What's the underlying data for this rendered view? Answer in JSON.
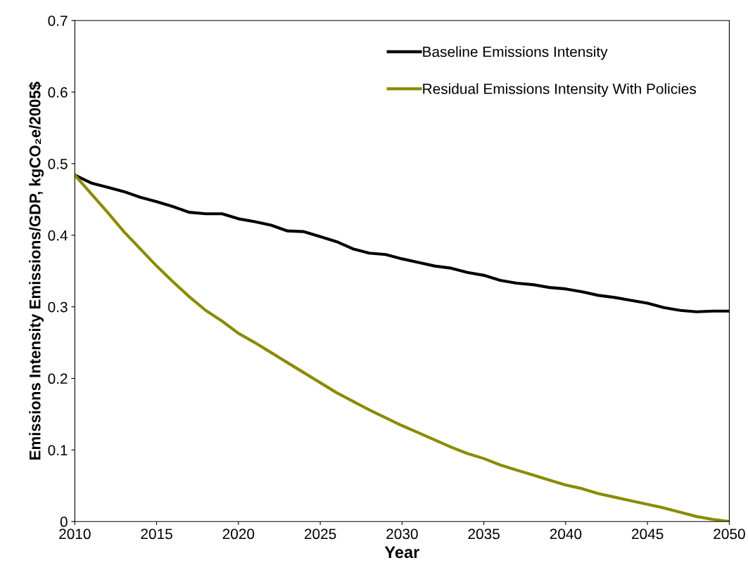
{
  "chart_data": {
    "type": "line",
    "xlabel": "Year",
    "ylabel": "Emissions Intensity Emissions/GDP, kgCO₂e/2005$",
    "x": [
      2010,
      2011,
      2012,
      2013,
      2014,
      2015,
      2016,
      2017,
      2018,
      2019,
      2020,
      2021,
      2022,
      2023,
      2024,
      2025,
      2026,
      2027,
      2028,
      2029,
      2030,
      2031,
      2032,
      2033,
      2034,
      2035,
      2036,
      2037,
      2038,
      2039,
      2040,
      2041,
      2042,
      2043,
      2044,
      2045,
      2046,
      2047,
      2048,
      2049,
      2050
    ],
    "series": [
      {
        "name": "Baseline Emissions Intensity",
        "color": "#000000",
        "values": [
          0.484,
          0.473,
          0.467,
          0.461,
          0.453,
          0.447,
          0.44,
          0.432,
          0.43,
          0.43,
          0.423,
          0.419,
          0.414,
          0.406,
          0.405,
          0.398,
          0.391,
          0.381,
          0.375,
          0.373,
          0.367,
          0.362,
          0.357,
          0.354,
          0.348,
          0.344,
          0.337,
          0.333,
          0.331,
          0.327,
          0.325,
          0.321,
          0.316,
          0.313,
          0.309,
          0.305,
          0.299,
          0.295,
          0.293,
          0.294,
          0.294
        ]
      },
      {
        "name": "Residual Emissions Intensity With Policies",
        "color": "#8b8b00",
        "values": [
          0.484,
          0.458,
          0.432,
          0.405,
          0.381,
          0.357,
          0.335,
          0.314,
          0.295,
          0.28,
          0.263,
          0.25,
          0.236,
          0.222,
          0.208,
          0.194,
          0.18,
          0.168,
          0.156,
          0.145,
          0.134,
          0.124,
          0.114,
          0.104,
          0.095,
          0.088,
          0.079,
          0.072,
          0.065,
          0.058,
          0.051,
          0.046,
          0.039,
          0.034,
          0.029,
          0.024,
          0.019,
          0.013,
          0.007,
          0.003,
          0.0
        ]
      }
    ],
    "xlim": [
      2010,
      2050
    ],
    "xticks": [
      2010,
      2015,
      2020,
      2025,
      2030,
      2035,
      2040,
      2045,
      2050
    ],
    "ylim": [
      0,
      0.7
    ],
    "yticks": [
      0,
      0.1,
      0.2,
      0.3,
      0.4,
      0.5,
      0.6,
      0.7
    ],
    "grid": false,
    "legend": "top right",
    "marker": "none",
    "line_style": "solid"
  }
}
